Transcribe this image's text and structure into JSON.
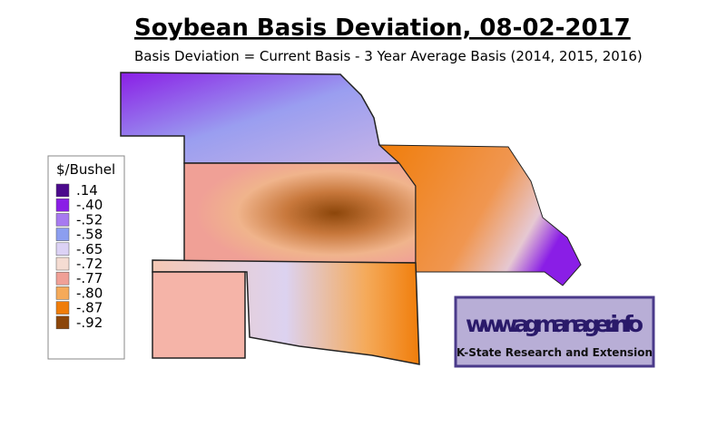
{
  "header": {
    "title": "Soybean Basis Deviation, 08-02-2017",
    "subtitle": "Basis Deviation = Current Basis - 3 Year Average Basis (2014, 2015, 2016)"
  },
  "legend": {
    "title": "$/Bushel",
    "items": [
      {
        "label": ".14",
        "color": "#4b0a8c"
      },
      {
        "label": "-.40",
        "color": "#8a1ee6"
      },
      {
        "label": "-.52",
        "color": "#a77af0"
      },
      {
        "label": "-.58",
        "color": "#8c9ef0"
      },
      {
        "label": "-.65",
        "color": "#dcd2f5"
      },
      {
        "label": "-.72",
        "color": "#f5dcd2"
      },
      {
        "label": "-.77",
        "color": "#f0a096"
      },
      {
        "label": "-.80",
        "color": "#f5aa5a"
      },
      {
        "label": "-.87",
        "color": "#f07d0a"
      },
      {
        "label": "-.92",
        "color": "#8c460a"
      }
    ]
  },
  "logo": {
    "url": "www.agmanager.info",
    "org": "K-State Research and Extension"
  }
}
